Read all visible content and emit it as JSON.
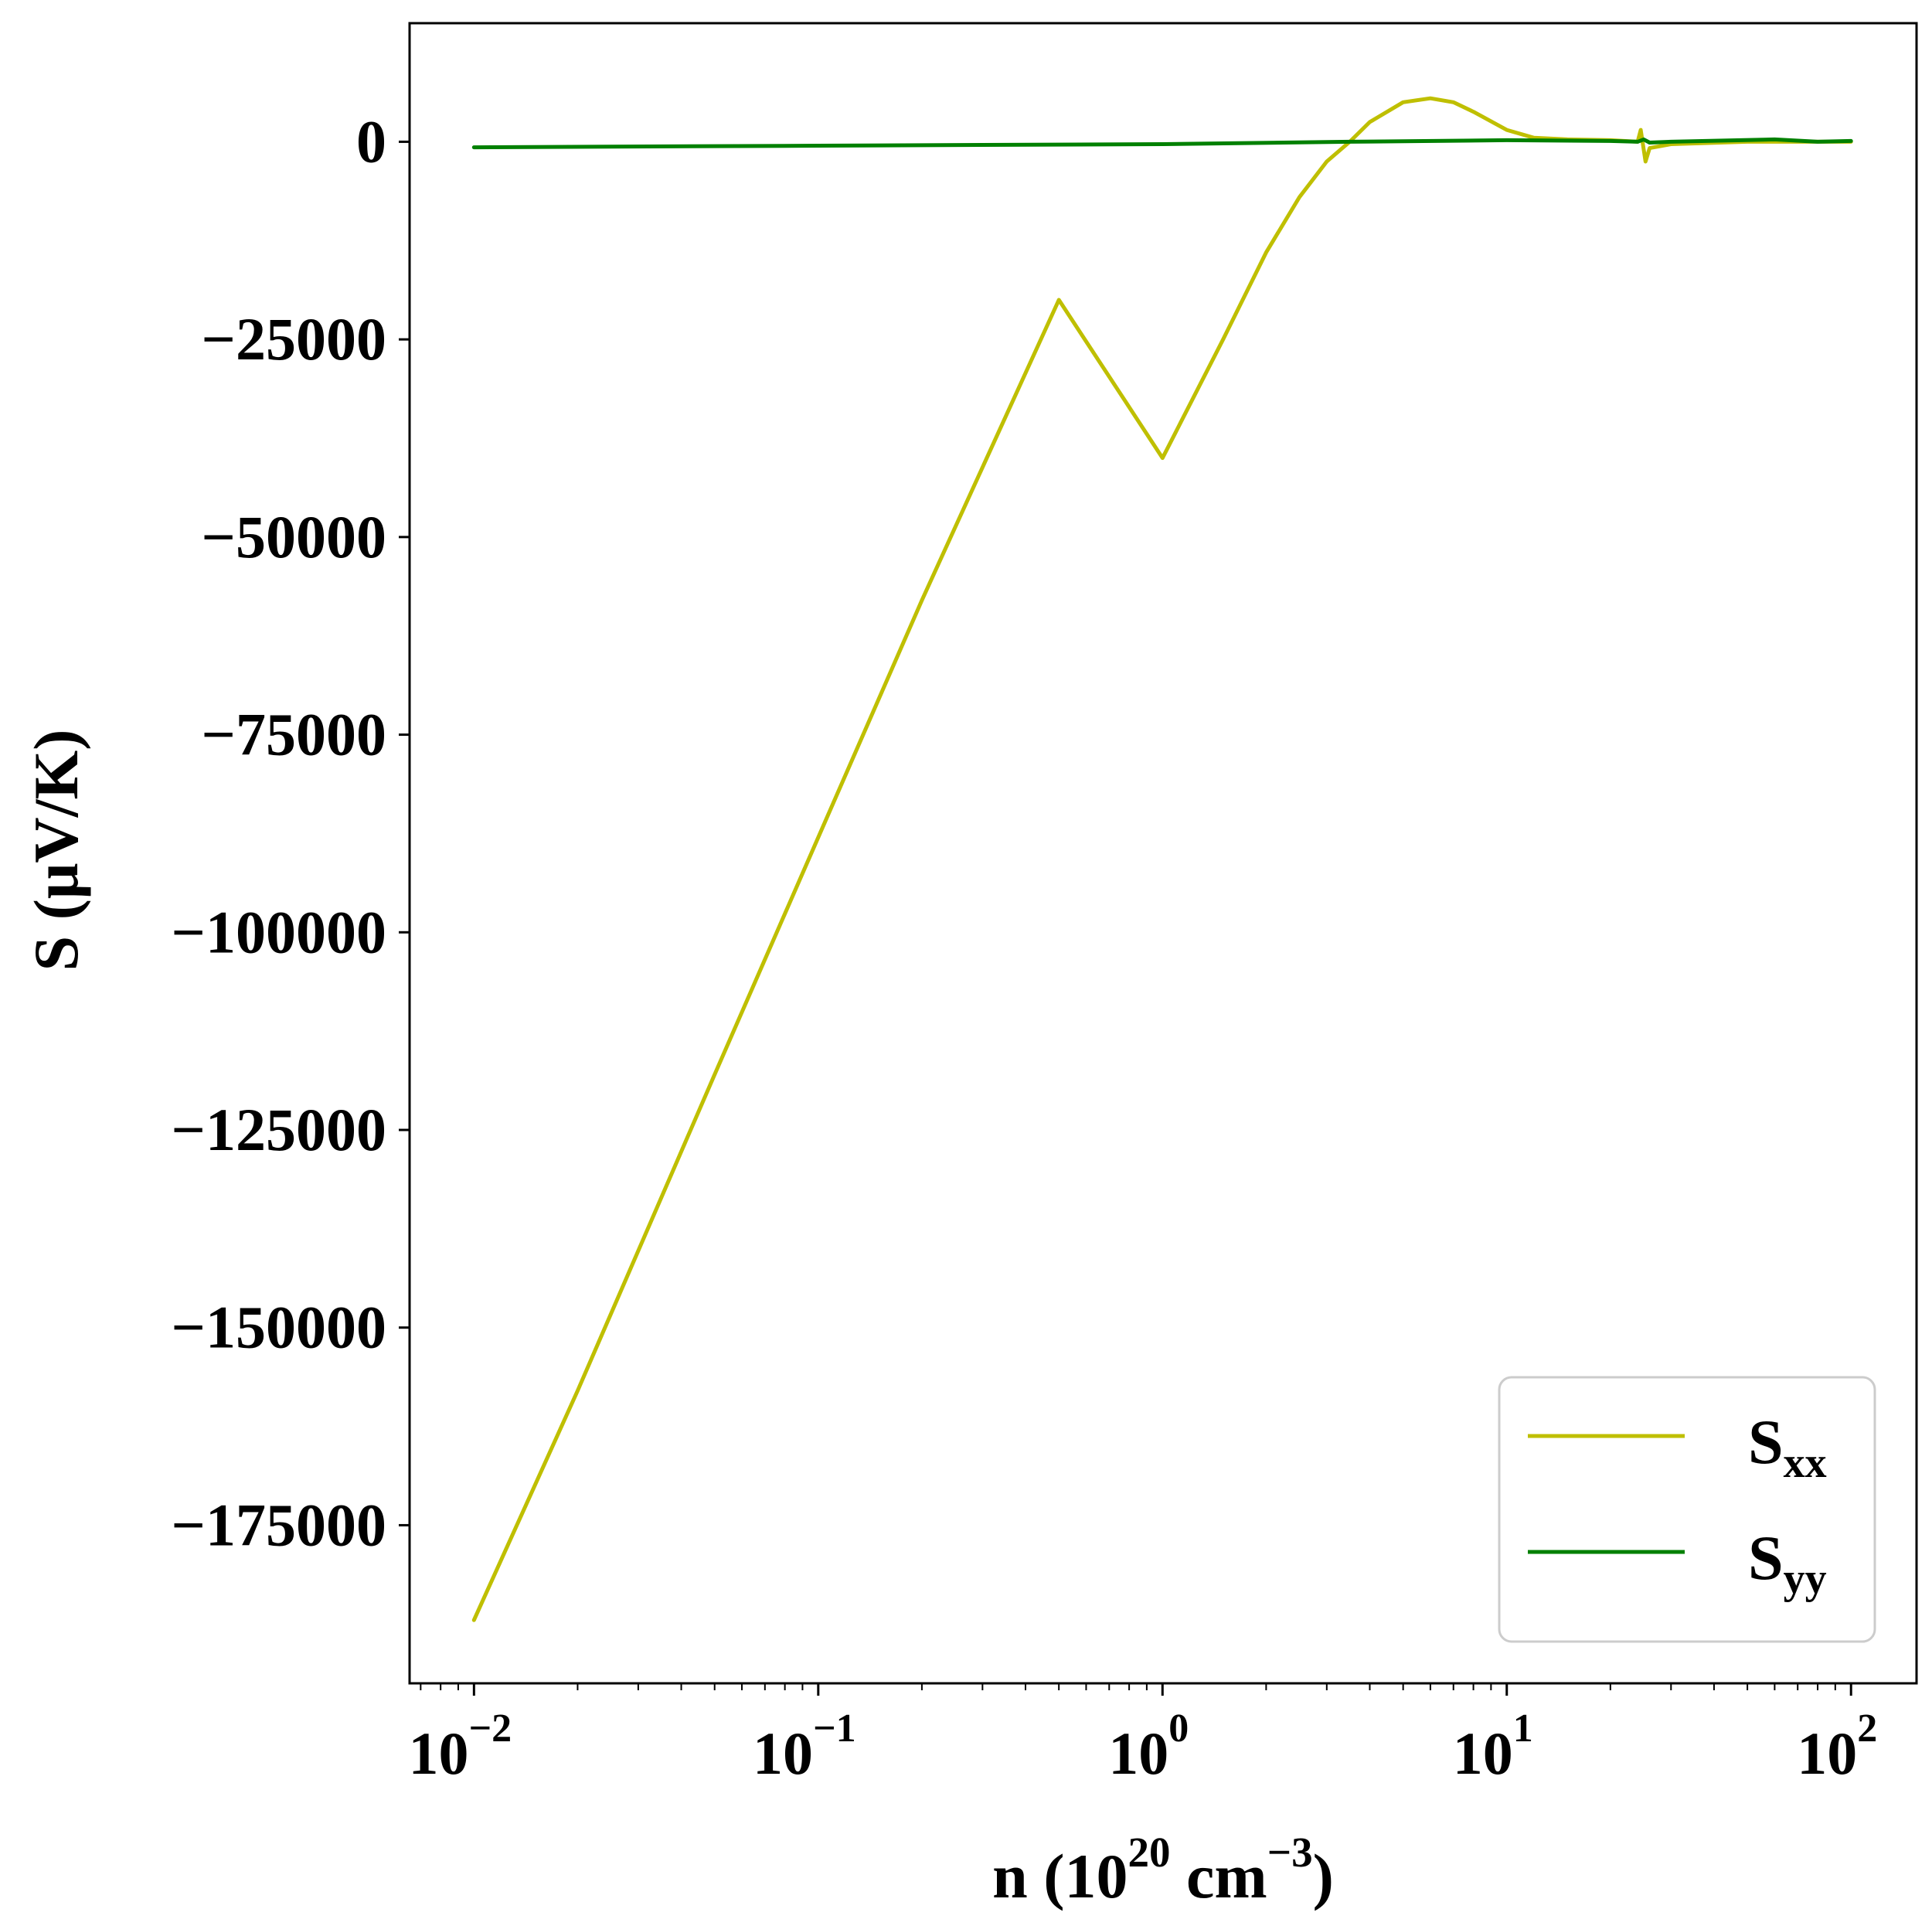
{
  "chart_data": {
    "type": "line",
    "xscale": "log",
    "xlim": [
      0.0065,
      155
    ],
    "ylim": [
      -195000,
      15000
    ],
    "xlabel": {
      "base": "n (10",
      "sup1": "20",
      "mid": " cm",
      "sup2": "−3",
      "end": ")"
    },
    "ylabel": "S (μV/K)",
    "yticks": [
      {
        "value": 0,
        "label": "0"
      },
      {
        "value": -25000,
        "label": "−25000"
      },
      {
        "value": -50000,
        "label": "−50000"
      },
      {
        "value": -75000,
        "label": "−75000"
      },
      {
        "value": -100000,
        "label": "−100000"
      },
      {
        "value": -125000,
        "label": "−125000"
      },
      {
        "value": -150000,
        "label": "−150000"
      },
      {
        "value": -175000,
        "label": "−175000"
      }
    ],
    "xticks": [
      {
        "value": 0.01,
        "base": "10",
        "exp": "−2"
      },
      {
        "value": 0.1,
        "base": "10",
        "exp": "−1"
      },
      {
        "value": 1,
        "base": "10",
        "exp": "0"
      },
      {
        "value": 10,
        "base": "10",
        "exp": "1"
      },
      {
        "value": 100,
        "base": "10",
        "exp": "2"
      }
    ],
    "legend_position": "lower-right",
    "grid": false,
    "series": [
      {
        "name": "S",
        "sub": "xx",
        "color": "#bfbf00",
        "x": [
          0.01,
          0.02,
          0.05,
          0.1,
          0.2,
          0.5,
          1.0,
          1.5,
          2.0,
          2.5,
          3.0,
          3.5,
          4.0,
          5.0,
          6.0,
          7.0,
          8.0,
          10.0,
          12.0,
          15.0,
          20.0,
          24.0,
          24.5,
          25.0,
          25.3,
          26.0,
          30.0,
          50.0,
          100.0
        ],
        "y": [
          -187000,
          -158000,
          -118000,
          -88000,
          -58000,
          -20000,
          -40000,
          -25000,
          -14000,
          -7000,
          -2500,
          0,
          2500,
          5000,
          5500,
          5000,
          3800,
          1500,
          500,
          300,
          200,
          0,
          1500,
          -1000,
          -2500,
          -800,
          -300,
          0,
          0
        ]
      },
      {
        "name": "S",
        "sub": "yy",
        "color": "#008000",
        "x": [
          0.01,
          0.1,
          1.0,
          3.5,
          10.0,
          20.0,
          24.0,
          25.0,
          26.0,
          30.0,
          60.0,
          80.0,
          100.0
        ],
        "y": [
          -700,
          -500,
          -300,
          0,
          200,
          100,
          0,
          300,
          -100,
          0,
          300,
          0,
          100
        ]
      }
    ]
  }
}
